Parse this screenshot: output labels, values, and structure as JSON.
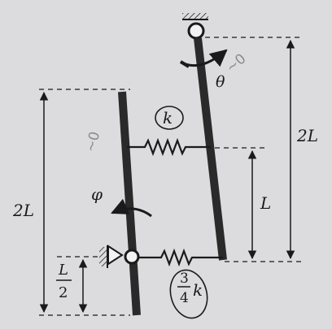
{
  "labels": {
    "spring_top": "k",
    "spring_bottom_num": "3",
    "spring_bottom_den": "4",
    "spring_bottom_k": "k",
    "theta": "θ",
    "phi": "φ",
    "dim_2L_right": "2L",
    "dim_L_right": "L",
    "dim_2L_left": "2L",
    "dim_half_num": "L",
    "dim_half_den": "2"
  },
  "annotations": {
    "theta_note": "~0",
    "phi_note": "~0"
  },
  "colors": {
    "background": "#dcdcde",
    "ink": "#1a1a1a",
    "bar": "#2a2a2a",
    "pencil": "#8a8a90"
  }
}
